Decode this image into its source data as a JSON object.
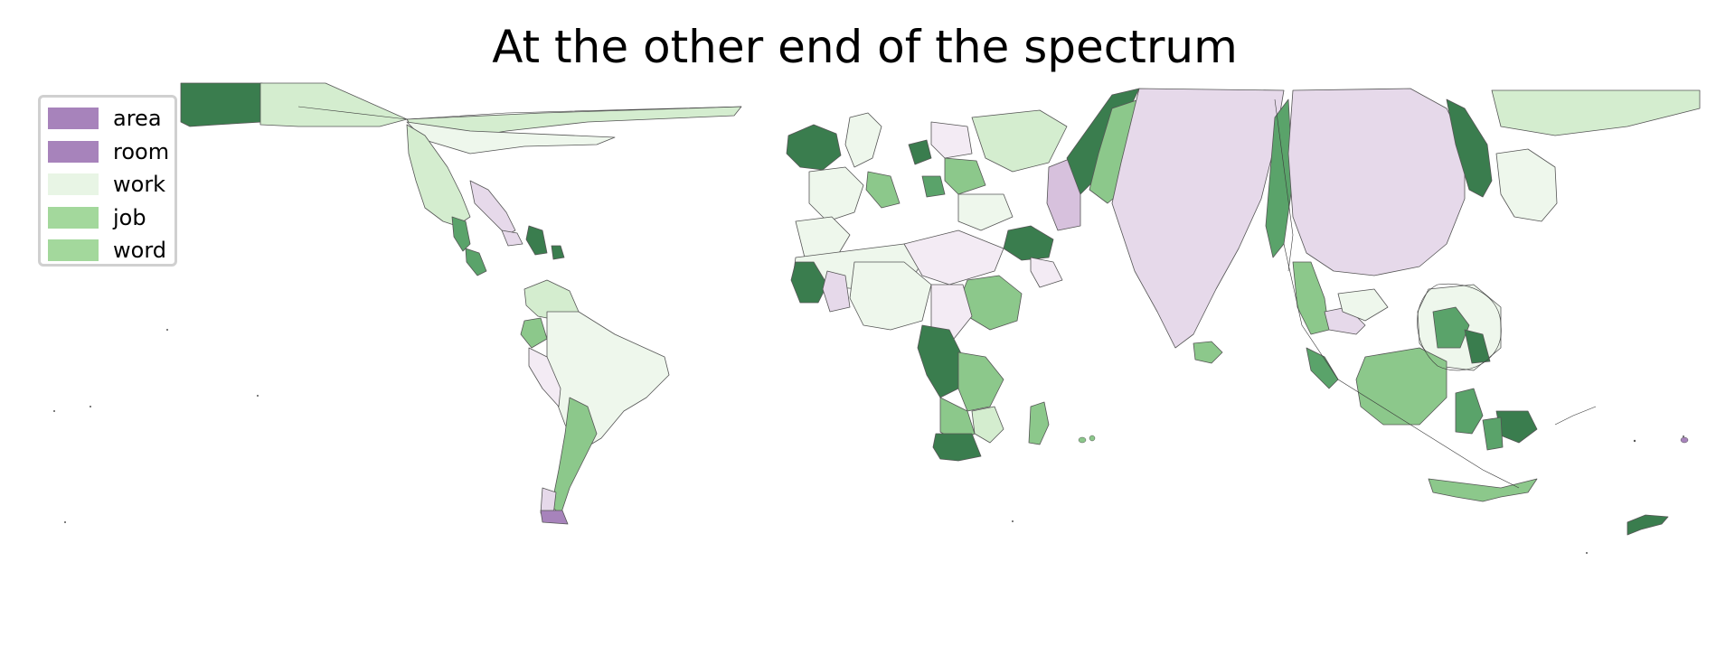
{
  "title": "At the other end of the spectrum",
  "legend": {
    "items": [
      {
        "label": "area",
        "color": "#a783bb"
      },
      {
        "label": "room",
        "color": "#a783bb"
      },
      {
        "label": "work",
        "color": "#e8f5e5"
      },
      {
        "label": "job",
        "color": "#a3d89c"
      },
      {
        "label": "word",
        "color": "#a3d89c"
      }
    ]
  },
  "palette": {
    "dark_green": "#3a7d4e",
    "mid_green": "#5aa36a",
    "green": "#8cc88b",
    "light_green": "#d4edcf",
    "pale_green": "#eef7ec",
    "pale_purple": "#f3ebf4",
    "light_purple": "#e6d9ea",
    "purple": "#d7c1dd",
    "border": "#555555"
  }
}
